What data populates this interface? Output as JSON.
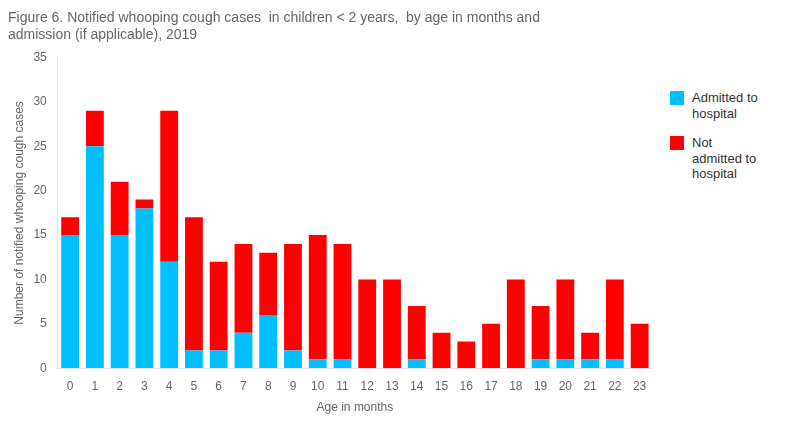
{
  "chart_data": {
    "type": "bar",
    "title": "Figure 6. Notified whooping cough cases  in children < 2 years,  by age in months and\nadmission (if applicable), 2019",
    "xlabel": "Age in months",
    "ylabel": "Number of notified whooping cough cases",
    "categories": [
      "0",
      "1",
      "2",
      "3",
      "4",
      "5",
      "6",
      "7",
      "8",
      "9",
      "10",
      "11",
      "12",
      "13",
      "14",
      "15",
      "16",
      "17",
      "18",
      "19",
      "20",
      "21",
      "22",
      "23"
    ],
    "series": [
      {
        "name": "Admitted to\nhospital",
        "color": "#00BFFF",
        "values": [
          15,
          25,
          15,
          18,
          12,
          2,
          2,
          4,
          6,
          2,
          1,
          1,
          0,
          0,
          1,
          0,
          0,
          0,
          0,
          1,
          1,
          1,
          1,
          0
        ]
      },
      {
        "name": "Not\nadmitted to\nhospital",
        "color": "#FF0000",
        "values": [
          2,
          4,
          6,
          1,
          17,
          15,
          10,
          10,
          7,
          12,
          14,
          13,
          10,
          10,
          6,
          4,
          3,
          5,
          10,
          6,
          9,
          3,
          9,
          5
        ]
      }
    ],
    "ylim": [
      0,
      35
    ],
    "yticks": [
      0,
      5,
      10,
      15,
      20,
      25,
      30,
      35
    ],
    "stacked": true,
    "grid": false,
    "legend": "right"
  }
}
